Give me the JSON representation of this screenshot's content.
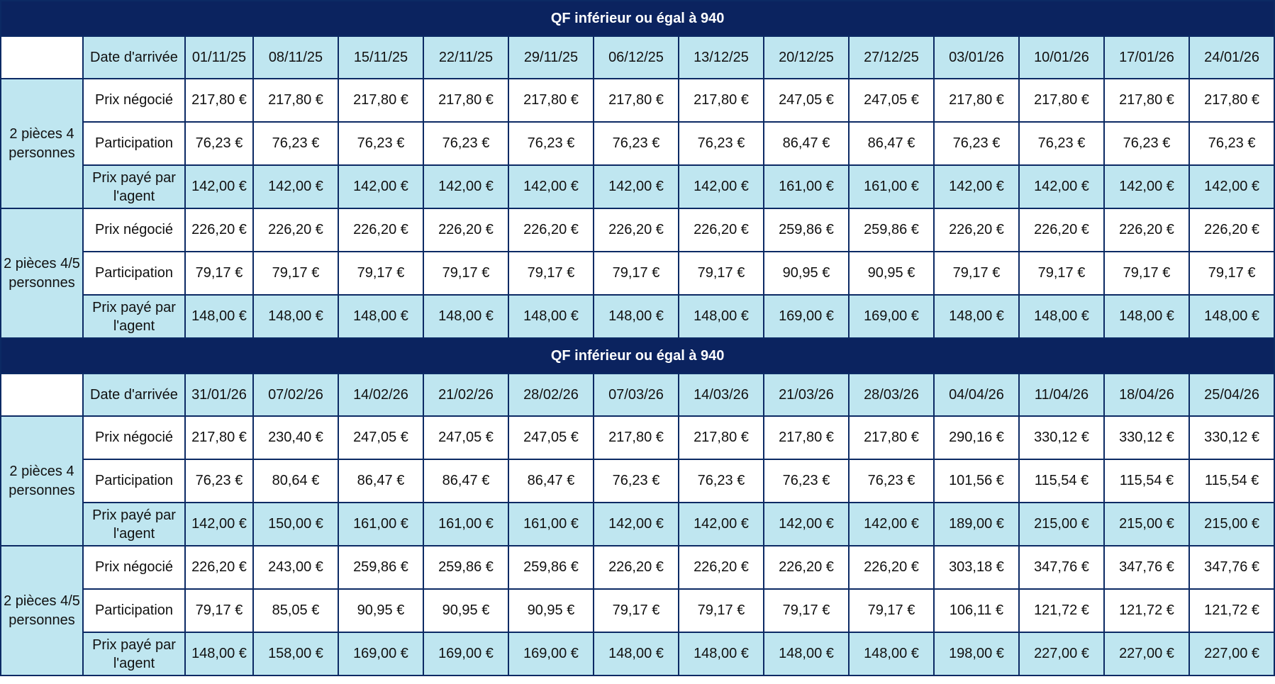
{
  "currency": "€",
  "colors": {
    "title_bg": "#0b235f",
    "highlight_bg": "#bfe6f0",
    "border": "#0c2a64"
  },
  "tables": [
    {
      "title": "QF inférieur ou égal à 940",
      "header_label": "Date d'arrivée",
      "dates": [
        "01/11/25",
        "08/11/25",
        "15/11/25",
        "22/11/25",
        "29/11/25",
        "06/12/25",
        "13/12/25",
        "20/12/25",
        "27/12/25",
        "03/01/26",
        "10/01/26",
        "17/01/26",
        "24/01/26"
      ],
      "groups": [
        {
          "name": "2 pièces 4 personnes",
          "rows": [
            {
              "label": "Prix négocié",
              "values": [
                "217,80 €",
                "217,80 €",
                "217,80 €",
                "217,80 €",
                "217,80 €",
                "217,80 €",
                "217,80 €",
                "247,05 €",
                "247,05 €",
                "217,80 €",
                "217,80 €",
                "217,80 €",
                "217,80 €"
              ]
            },
            {
              "label": "Participation",
              "values": [
                "76,23 €",
                "76,23 €",
                "76,23 €",
                "76,23 €",
                "76,23 €",
                "76,23 €",
                "76,23 €",
                "86,47 €",
                "86,47 €",
                "76,23 €",
                "76,23 €",
                "76,23 €",
                "76,23 €"
              ]
            },
            {
              "label": "Prix payé par l'agent",
              "values": [
                "142,00 €",
                "142,00 €",
                "142,00 €",
                "142,00 €",
                "142,00 €",
                "142,00 €",
                "142,00 €",
                "161,00 €",
                "161,00 €",
                "142,00 €",
                "142,00 €",
                "142,00 €",
                "142,00 €"
              ]
            }
          ]
        },
        {
          "name": "2 pièces 4/5 personnes",
          "rows": [
            {
              "label": "Prix négocié",
              "values": [
                "226,20 €",
                "226,20 €",
                "226,20 €",
                "226,20 €",
                "226,20 €",
                "226,20 €",
                "226,20 €",
                "259,86 €",
                "259,86 €",
                "226,20 €",
                "226,20 €",
                "226,20 €",
                "226,20 €"
              ]
            },
            {
              "label": "Participation",
              "values": [
                "79,17 €",
                "79,17 €",
                "79,17 €",
                "79,17 €",
                "79,17 €",
                "79,17 €",
                "79,17 €",
                "90,95 €",
                "90,95 €",
                "79,17 €",
                "79,17 €",
                "79,17 €",
                "79,17 €"
              ]
            },
            {
              "label": "Prix payé par l'agent",
              "values": [
                "148,00 €",
                "148,00 €",
                "148,00 €",
                "148,00 €",
                "148,00 €",
                "148,00 €",
                "148,00 €",
                "169,00 €",
                "169,00 €",
                "148,00 €",
                "148,00 €",
                "148,00 €",
                "148,00 €"
              ]
            }
          ]
        }
      ]
    },
    {
      "title": "QF inférieur ou égal à 940",
      "header_label": "Date d'arrivée",
      "dates": [
        "31/01/26",
        "07/02/26",
        "14/02/26",
        "21/02/26",
        "28/02/26",
        "07/03/26",
        "14/03/26",
        "21/03/26",
        "28/03/26",
        "04/04/26",
        "11/04/26",
        "18/04/26",
        "25/04/26"
      ],
      "groups": [
        {
          "name": "2 pièces 4 personnes",
          "rows": [
            {
              "label": "Prix négocié",
              "values": [
                "217,80 €",
                "230,40 €",
                "247,05 €",
                "247,05 €",
                "247,05 €",
                "217,80 €",
                "217,80 €",
                "217,80 €",
                "217,80 €",
                "290,16 €",
                "330,12 €",
                "330,12 €",
                "330,12 €"
              ]
            },
            {
              "label": "Participation",
              "values": [
                "76,23 €",
                "80,64 €",
                "86,47 €",
                "86,47 €",
                "86,47 €",
                "76,23 €",
                "76,23 €",
                "76,23 €",
                "76,23 €",
                "101,56 €",
                "115,54 €",
                "115,54 €",
                "115,54 €"
              ]
            },
            {
              "label": "Prix payé par l'agent",
              "values": [
                "142,00 €",
                "150,00 €",
                "161,00 €",
                "161,00 €",
                "161,00 €",
                "142,00 €",
                "142,00 €",
                "142,00 €",
                "142,00 €",
                "189,00 €",
                "215,00 €",
                "215,00 €",
                "215,00 €"
              ]
            }
          ]
        },
        {
          "name": "2 pièces 4/5 personnes",
          "rows": [
            {
              "label": "Prix négocié",
              "values": [
                "226,20 €",
                "243,00 €",
                "259,86 €",
                "259,86 €",
                "259,86 €",
                "226,20 €",
                "226,20 €",
                "226,20 €",
                "226,20 €",
                "303,18 €",
                "347,76 €",
                "347,76 €",
                "347,76 €"
              ]
            },
            {
              "label": "Participation",
              "values": [
                "79,17 €",
                "85,05 €",
                "90,95 €",
                "90,95 €",
                "90,95 €",
                "79,17 €",
                "79,17 €",
                "79,17 €",
                "79,17 €",
                "106,11 €",
                "121,72 €",
                "121,72 €",
                "121,72 €"
              ]
            },
            {
              "label": "Prix payé par l'agent",
              "values": [
                "148,00 €",
                "158,00 €",
                "169,00 €",
                "169,00 €",
                "169,00 €",
                "148,00 €",
                "148,00 €",
                "148,00 €",
                "148,00 €",
                "198,00 €",
                "227,00 €",
                "227,00 €",
                "227,00 €"
              ]
            }
          ]
        }
      ]
    }
  ]
}
